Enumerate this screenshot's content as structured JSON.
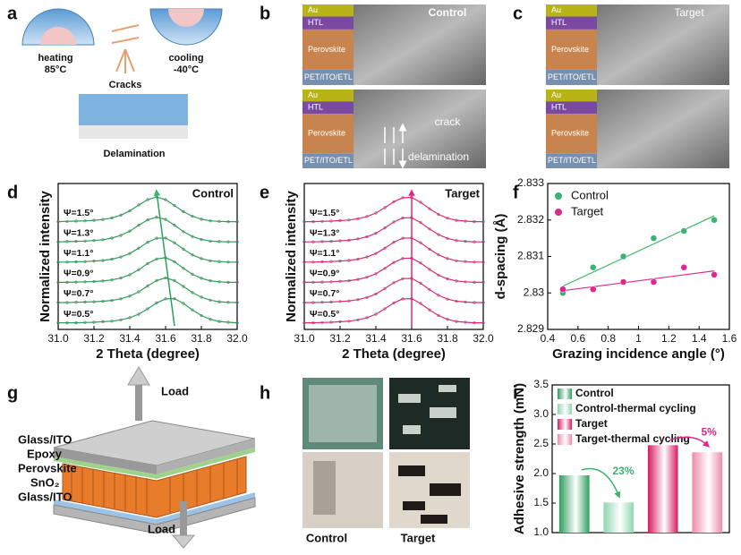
{
  "panels": {
    "labels": [
      "a",
      "b",
      "c",
      "d",
      "e",
      "f",
      "g",
      "h",
      "i"
    ],
    "a": {
      "heating": "heating",
      "heating_temp": "85°C",
      "cracks": "Cracks",
      "cooling": "cooling",
      "cooling_temp": "-40°C",
      "delamination": "Delamination"
    },
    "layers": [
      "Au",
      "HTL",
      "Perovskite",
      "PET/ITO/ETL"
    ],
    "b": {
      "title": "Control",
      "crack": "crack",
      "delamination": "delamination"
    },
    "c": {
      "title": "Target"
    },
    "g": {
      "load_top": "Load",
      "load_bottom": "Load",
      "layers": [
        "Glass/ITO",
        "Epoxy",
        "Perovskite",
        "SnO₂",
        "Glass/ITO"
      ]
    },
    "h": {
      "control": "Control",
      "target": "Target"
    }
  },
  "chart_data": [
    {
      "type": "line",
      "title": "Control",
      "xlabel": "2 Theta (degree)",
      "ylabel": "Normalized intensity",
      "color": "#2ca05a",
      "x": [
        31.0,
        31.05,
        31.1,
        31.15,
        31.2,
        31.25,
        31.3,
        31.35,
        31.4,
        31.45,
        31.5,
        31.55,
        31.6,
        31.65,
        31.7,
        31.75,
        31.8,
        31.85,
        31.9,
        31.95,
        32.0
      ],
      "xlim": [
        31.0,
        32.0
      ],
      "xticks": [
        {
          "value": 31.0,
          "label": "31.0"
        },
        31.2,
        31.4,
        31.6,
        31.8,
        {
          "value": 32.0,
          "label": "32.0"
        }
      ],
      "series": [
        {
          "name": "Ψ=1.5°",
          "values": [
            0.08,
            0.09,
            0.1,
            0.11,
            0.13,
            0.16,
            0.22,
            0.32,
            0.48,
            0.7,
            0.9,
            1.0,
            0.9,
            0.68,
            0.45,
            0.28,
            0.17,
            0.11,
            0.09,
            0.08,
            0.08
          ]
        },
        {
          "name": "Ψ=1.3°",
          "values": [
            0.08,
            0.09,
            0.1,
            0.11,
            0.13,
            0.16,
            0.22,
            0.32,
            0.48,
            0.7,
            0.9,
            1.0,
            0.92,
            0.7,
            0.46,
            0.28,
            0.17,
            0.11,
            0.09,
            0.08,
            0.08
          ]
        },
        {
          "name": "Ψ=1.1°",
          "values": [
            0.08,
            0.08,
            0.09,
            0.1,
            0.12,
            0.14,
            0.19,
            0.27,
            0.4,
            0.6,
            0.82,
            0.97,
            0.98,
            0.8,
            0.56,
            0.35,
            0.21,
            0.13,
            0.1,
            0.08,
            0.08
          ]
        },
        {
          "name": "Ψ=0.9°",
          "values": [
            0.08,
            0.08,
            0.09,
            0.1,
            0.11,
            0.13,
            0.17,
            0.24,
            0.36,
            0.55,
            0.78,
            0.95,
            1.0,
            0.85,
            0.6,
            0.38,
            0.23,
            0.14,
            0.1,
            0.08,
            0.08
          ]
        },
        {
          "name": "Ψ=0.7°",
          "values": [
            0.08,
            0.08,
            0.09,
            0.1,
            0.11,
            0.13,
            0.16,
            0.22,
            0.32,
            0.48,
            0.7,
            0.9,
            1.0,
            0.9,
            0.68,
            0.45,
            0.28,
            0.17,
            0.11,
            0.09,
            0.08
          ]
        },
        {
          "name": "Ψ=0.5°",
          "values": [
            0.08,
            0.08,
            0.08,
            0.09,
            0.1,
            0.12,
            0.14,
            0.19,
            0.27,
            0.4,
            0.6,
            0.82,
            0.97,
            0.98,
            0.8,
            0.56,
            0.35,
            0.21,
            0.13,
            0.1,
            0.08
          ]
        }
      ]
    },
    {
      "type": "line",
      "title": "Target",
      "xlabel": "2 Theta (degree)",
      "ylabel": "Normalized intensity",
      "color": "#e0287a",
      "x": [
        31.0,
        31.05,
        31.1,
        31.15,
        31.2,
        31.25,
        31.3,
        31.35,
        31.4,
        31.45,
        31.5,
        31.55,
        31.6,
        31.65,
        31.7,
        31.75,
        31.8,
        31.85,
        31.9,
        31.95,
        32.0
      ],
      "xlim": [
        31.0,
        32.0
      ],
      "xticks": [
        {
          "value": 31.0,
          "label": "31.0"
        },
        31.2,
        31.4,
        31.6,
        31.8,
        {
          "value": 32.0,
          "label": "32.0"
        }
      ],
      "series": [
        {
          "name": "Ψ=1.5°",
          "values": [
            0.08,
            0.08,
            0.09,
            0.1,
            0.12,
            0.14,
            0.19,
            0.27,
            0.4,
            0.6,
            0.82,
            0.97,
            0.98,
            0.8,
            0.56,
            0.35,
            0.21,
            0.13,
            0.1,
            0.08,
            0.08
          ]
        },
        {
          "name": "Ψ=1.3°",
          "values": [
            0.08,
            0.08,
            0.09,
            0.1,
            0.12,
            0.14,
            0.19,
            0.27,
            0.4,
            0.6,
            0.82,
            0.97,
            0.98,
            0.8,
            0.56,
            0.35,
            0.21,
            0.13,
            0.1,
            0.08,
            0.08
          ]
        },
        {
          "name": "Ψ=1.1°",
          "values": [
            0.08,
            0.08,
            0.09,
            0.1,
            0.12,
            0.14,
            0.19,
            0.27,
            0.4,
            0.6,
            0.82,
            0.97,
            0.98,
            0.8,
            0.56,
            0.35,
            0.21,
            0.13,
            0.1,
            0.08,
            0.08
          ]
        },
        {
          "name": "Ψ=0.9°",
          "values": [
            0.08,
            0.08,
            0.09,
            0.1,
            0.12,
            0.14,
            0.19,
            0.27,
            0.4,
            0.6,
            0.82,
            0.97,
            0.98,
            0.8,
            0.56,
            0.35,
            0.21,
            0.13,
            0.1,
            0.08,
            0.08
          ]
        },
        {
          "name": "Ψ=0.7°",
          "values": [
            0.08,
            0.08,
            0.09,
            0.1,
            0.12,
            0.14,
            0.19,
            0.27,
            0.4,
            0.6,
            0.82,
            0.97,
            0.98,
            0.8,
            0.56,
            0.35,
            0.21,
            0.13,
            0.1,
            0.08,
            0.08
          ]
        },
        {
          "name": "Ψ=0.5°",
          "values": [
            0.08,
            0.08,
            0.09,
            0.1,
            0.12,
            0.14,
            0.19,
            0.27,
            0.4,
            0.6,
            0.82,
            0.97,
            0.98,
            0.8,
            0.56,
            0.35,
            0.21,
            0.13,
            0.1,
            0.08,
            0.08
          ]
        }
      ]
    },
    {
      "type": "scatter",
      "xlabel": "Grazing incidence angle (°)",
      "ylabel": "d-spacing (Å)",
      "legend": "upper left",
      "fit": true,
      "xlim": [
        0.4,
        1.6
      ],
      "xticks": [
        0.4,
        0.6,
        0.8,
        1.0,
        1.2,
        1.4,
        1.6
      ],
      "ylim": [
        2.829,
        2.833
      ],
      "yticks": [
        2.829,
        2.83,
        2.831,
        2.832,
        2.833
      ],
      "series": [
        {
          "name": "Control",
          "color": "#3cb371",
          "x": [
            0.5,
            0.7,
            0.9,
            1.1,
            1.3,
            1.5
          ],
          "values": [
            2.83,
            2.8307,
            2.831,
            2.8315,
            2.8317,
            2.832
          ]
        },
        {
          "name": "Target",
          "color": "#e0288a",
          "x": [
            0.5,
            0.7,
            0.9,
            1.1,
            1.3,
            1.5
          ],
          "values": [
            2.8301,
            2.8301,
            2.8303,
            2.8303,
            2.8307,
            2.8305
          ]
        }
      ]
    },
    {
      "type": "bar",
      "ylabel": "Adhesive strength (mN)",
      "legend": "upper left",
      "ylim": [
        1.0,
        3.5
      ],
      "yticks": [
        {
          "value": 1.0,
          "label": "1.0"
        },
        1.5,
        {
          "value": 2.0,
          "label": "2.0"
        },
        2.5,
        {
          "value": 3.0,
          "label": "3.0"
        },
        3.5
      ],
      "series": [
        {
          "name": "Control",
          "color": "#2e9e5e",
          "values": [
            1.97
          ]
        },
        {
          "name": "Control-thermal cycling",
          "color": "#8fd6ae",
          "values": [
            1.51
          ]
        },
        {
          "name": "Target",
          "color": "#d81b60",
          "values": [
            2.48
          ]
        },
        {
          "name": "Target-thermal cycling",
          "color": "#f08aa8",
          "values": [
            2.36
          ]
        }
      ],
      "annotations": [
        {
          "text": "23%",
          "color": "#3cb371"
        },
        {
          "text": "5%",
          "color": "#e0288a"
        }
      ]
    }
  ]
}
